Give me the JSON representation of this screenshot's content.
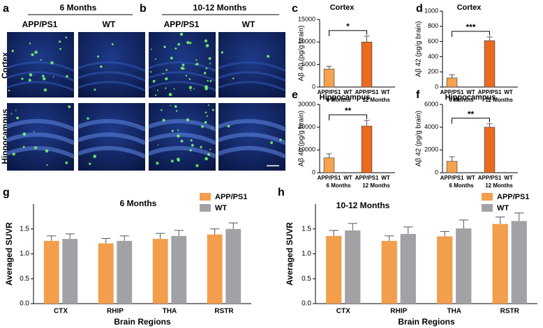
{
  "images": {
    "a": {
      "label": "a",
      "title": "6 Months",
      "columns": [
        "APP/PS1",
        "WT"
      ]
    },
    "b": {
      "label": "b",
      "title": "10-12 Months",
      "columns": [
        "APP/PS1",
        "WT"
      ]
    },
    "rows": [
      "Cortex",
      "Hippocampus"
    ]
  },
  "chart_data": [
    {
      "type": "bar",
      "label": "c",
      "title": "Cortex",
      "y_label": "Aβ 40 (pg/g brain)",
      "categories": [
        "APP/PS1",
        "WT",
        "APP/PS1",
        "WT"
      ],
      "groups": [
        "6 Months",
        "12 Months"
      ],
      "values": [
        4000,
        0,
        10000,
        0
      ],
      "errors": [
        600,
        null,
        1300,
        null
      ],
      "colors": [
        "#f4a24e",
        "#f4a24e",
        "#ea6a22",
        "#ea6a22"
      ],
      "ylim": [
        0,
        15000
      ],
      "yticks": [
        0,
        5000,
        10000,
        15000
      ],
      "significance": "*"
    },
    {
      "type": "bar",
      "label": "d",
      "title": "Cortex",
      "y_label": "Aβ 42 (pg/g brain)",
      "categories": [
        "APP/PS1",
        "WT",
        "APP/PS1",
        "WT"
      ],
      "groups": [
        "6 Months",
        "12 Months"
      ],
      "values": [
        120,
        0,
        610,
        0
      ],
      "errors": [
        40,
        null,
        50,
        null
      ],
      "colors": [
        "#f4a24e",
        "#f4a24e",
        "#ea6a22",
        "#ea6a22"
      ],
      "ylim": [
        0,
        1000
      ],
      "yticks": [
        0,
        200,
        400,
        600,
        800,
        1000
      ],
      "significance": "***"
    },
    {
      "type": "bar",
      "label": "e",
      "title": "Hippocampus",
      "y_label": "Aβ 40 (pg/g brain)",
      "categories": [
        "APP/PS1",
        "WT",
        "APP/PS1",
        "WT"
      ],
      "groups": [
        "6 Months",
        "12 Months"
      ],
      "values": [
        6500,
        0,
        20500,
        0
      ],
      "errors": [
        1800,
        null,
        2500,
        null
      ],
      "colors": [
        "#f4a24e",
        "#f4a24e",
        "#ea6a22",
        "#ea6a22"
      ],
      "ylim": [
        0,
        30000
      ],
      "yticks": [
        0,
        10000,
        20000,
        30000
      ],
      "significance": "**"
    },
    {
      "type": "bar",
      "label": "f",
      "title": "Hippocampus",
      "y_label": "Aβ 42 (pg/g brain)",
      "categories": [
        "APP/PS1",
        "WT",
        "APP/PS1",
        "WT"
      ],
      "groups": [
        "6 Months",
        "12 Months"
      ],
      "values": [
        1000,
        0,
        4000,
        0
      ],
      "errors": [
        400,
        null,
        300,
        null
      ],
      "colors": [
        "#f4a24e",
        "#f4a24e",
        "#ea6a22",
        "#ea6a22"
      ],
      "ylim": [
        0,
        6000
      ],
      "yticks": [
        0,
        2000,
        4000,
        6000
      ],
      "significance": "**"
    },
    {
      "type": "grouped_bar",
      "label": "g",
      "title": "6 Months",
      "y_label": "Averaged SUVR",
      "x_label": "Brain Regions",
      "categories": [
        "CTX",
        "RHIP",
        "THA",
        "RSTR"
      ],
      "series": [
        {
          "name": "APP/PS1",
          "color": "#f29e4c",
          "values": [
            1.26,
            1.21,
            1.3,
            1.39
          ],
          "errors": [
            0.1,
            0.1,
            0.11,
            0.11
          ]
        },
        {
          "name": "WT",
          "color": "#a2a2a6",
          "values": [
            1.3,
            1.26,
            1.36,
            1.5
          ],
          "errors": [
            0.1,
            0.1,
            0.11,
            0.12
          ]
        }
      ],
      "ylim": [
        0,
        2
      ],
      "yticks": [
        {
          "value": 0,
          "label": "0.0"
        },
        {
          "value": 0.5,
          "label": "0.5"
        },
        {
          "value": 1,
          "label": "1.0"
        },
        {
          "value": 1.5,
          "label": "1.5"
        }
      ]
    },
    {
      "type": "grouped_bar",
      "label": "h",
      "title": "10-12 Months",
      "y_label": "Averaged SUVR",
      "x_label": "Brain Regions",
      "categories": [
        "CTX",
        "RHIP",
        "THA",
        "RSTR"
      ],
      "series": [
        {
          "name": "APP/PS1",
          "color": "#f29e4c",
          "values": [
            1.36,
            1.26,
            1.35,
            1.6
          ],
          "errors": [
            0.11,
            0.1,
            0.1,
            0.14
          ]
        },
        {
          "name": "WT",
          "color": "#a2a2a6",
          "values": [
            1.47,
            1.4,
            1.51,
            1.66
          ],
          "errors": [
            0.14,
            0.14,
            0.17,
            0.16
          ]
        }
      ],
      "ylim": [
        0,
        2
      ],
      "yticks": [
        {
          "value": 0,
          "label": "0.0"
        },
        {
          "value": 0.5,
          "label": "0.5"
        },
        {
          "value": 1,
          "label": "1.0"
        },
        {
          "value": 1.5,
          "label": "1.5"
        }
      ]
    }
  ]
}
